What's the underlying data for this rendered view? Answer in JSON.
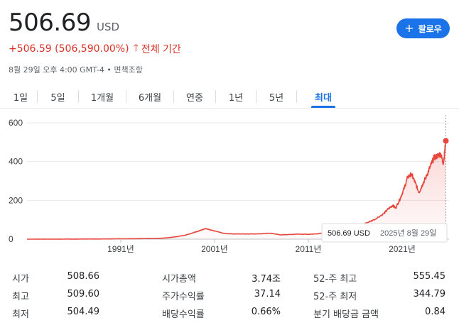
{
  "quote": {
    "price": "506.69",
    "currency": "USD",
    "change": "+506.59 (506,590.00%)",
    "change_arrow": "🡑",
    "period": "전체 기간",
    "timestamp": "8월 29일 오후 4:00 GMT-4",
    "disclaimer": "• 면책조항",
    "follow_label": "팔로우",
    "follow_icon": "plus-icon"
  },
  "tabs": [
    {
      "label": "1일"
    },
    {
      "label": "5일"
    },
    {
      "label": "1개월"
    },
    {
      "label": "6개월"
    },
    {
      "label": "연중"
    },
    {
      "label": "1년"
    },
    {
      "label": "5년"
    },
    {
      "label": "최대",
      "active": true
    }
  ],
  "chart_data": {
    "type": "area",
    "title": "",
    "xlabel": "",
    "ylabel": "",
    "ylim": [
      0,
      600
    ],
    "xlim": [
      1981.0,
      2025.7
    ],
    "y_ticks": [
      "600",
      "400",
      "200",
      "0"
    ],
    "x_ticks": [
      {
        "value": 1991,
        "label": "1991년"
      },
      {
        "value": 2001,
        "label": "2001년"
      },
      {
        "value": 2011,
        "label": "2011년"
      },
      {
        "value": 2021,
        "label": "2021년"
      }
    ],
    "line_color": "#e8453c",
    "series": [
      {
        "x": [
          1981.0,
          1983,
          1986,
          1989,
          1991,
          1993,
          1995,
          1996,
          1997,
          1998,
          1999,
          1999.5,
          2000.0,
          2000.5,
          2001.0,
          2002,
          2003,
          2004,
          2005,
          2006,
          2007,
          2008,
          2009,
          2010,
          2011,
          2012,
          2013,
          2014,
          2015,
          2016,
          2017,
          2018,
          2019,
          2019.5,
          2020.0,
          2020.3,
          2020.8,
          2021.2,
          2021.6,
          2022.0,
          2022.4,
          2022.8,
          2023.2,
          2023.6,
          2024.0,
          2024.4,
          2024.8,
          2025.1,
          2025.4,
          2025.66
        ],
        "values": [
          0.1,
          0.2,
          0.5,
          1,
          2,
          2.5,
          4,
          7,
          13,
          22,
          38,
          45,
          55,
          48,
          42,
          30,
          27,
          27,
          27,
          28,
          31,
          22,
          24,
          26,
          25,
          28,
          37,
          42,
          50,
          60,
          80,
          100,
          130,
          155,
          175,
          160,
          210,
          260,
          320,
          335,
          290,
          240,
          285,
          325,
          375,
          420,
          430,
          440,
          390,
          506.69
        ]
      }
    ],
    "tooltip": {
      "value": "506.69 USD",
      "date": "2025년 8월 29일"
    }
  },
  "stats": [
    [
      {
        "label": "시가",
        "value": "508.66"
      },
      {
        "label": "시가총액",
        "value": "3.74조"
      },
      {
        "label": "52-주 최고",
        "value": "555.45"
      }
    ],
    [
      {
        "label": "최고",
        "value": "509.60"
      },
      {
        "label": "주가수익률",
        "value": "37.14"
      },
      {
        "label": "52-주 최저",
        "value": "344.79"
      }
    ],
    [
      {
        "label": "최저",
        "value": "504.49"
      },
      {
        "label": "배당수익률",
        "value": "0.66%"
      },
      {
        "label": "분기 배당금 금액",
        "value": "0.84"
      }
    ]
  ]
}
